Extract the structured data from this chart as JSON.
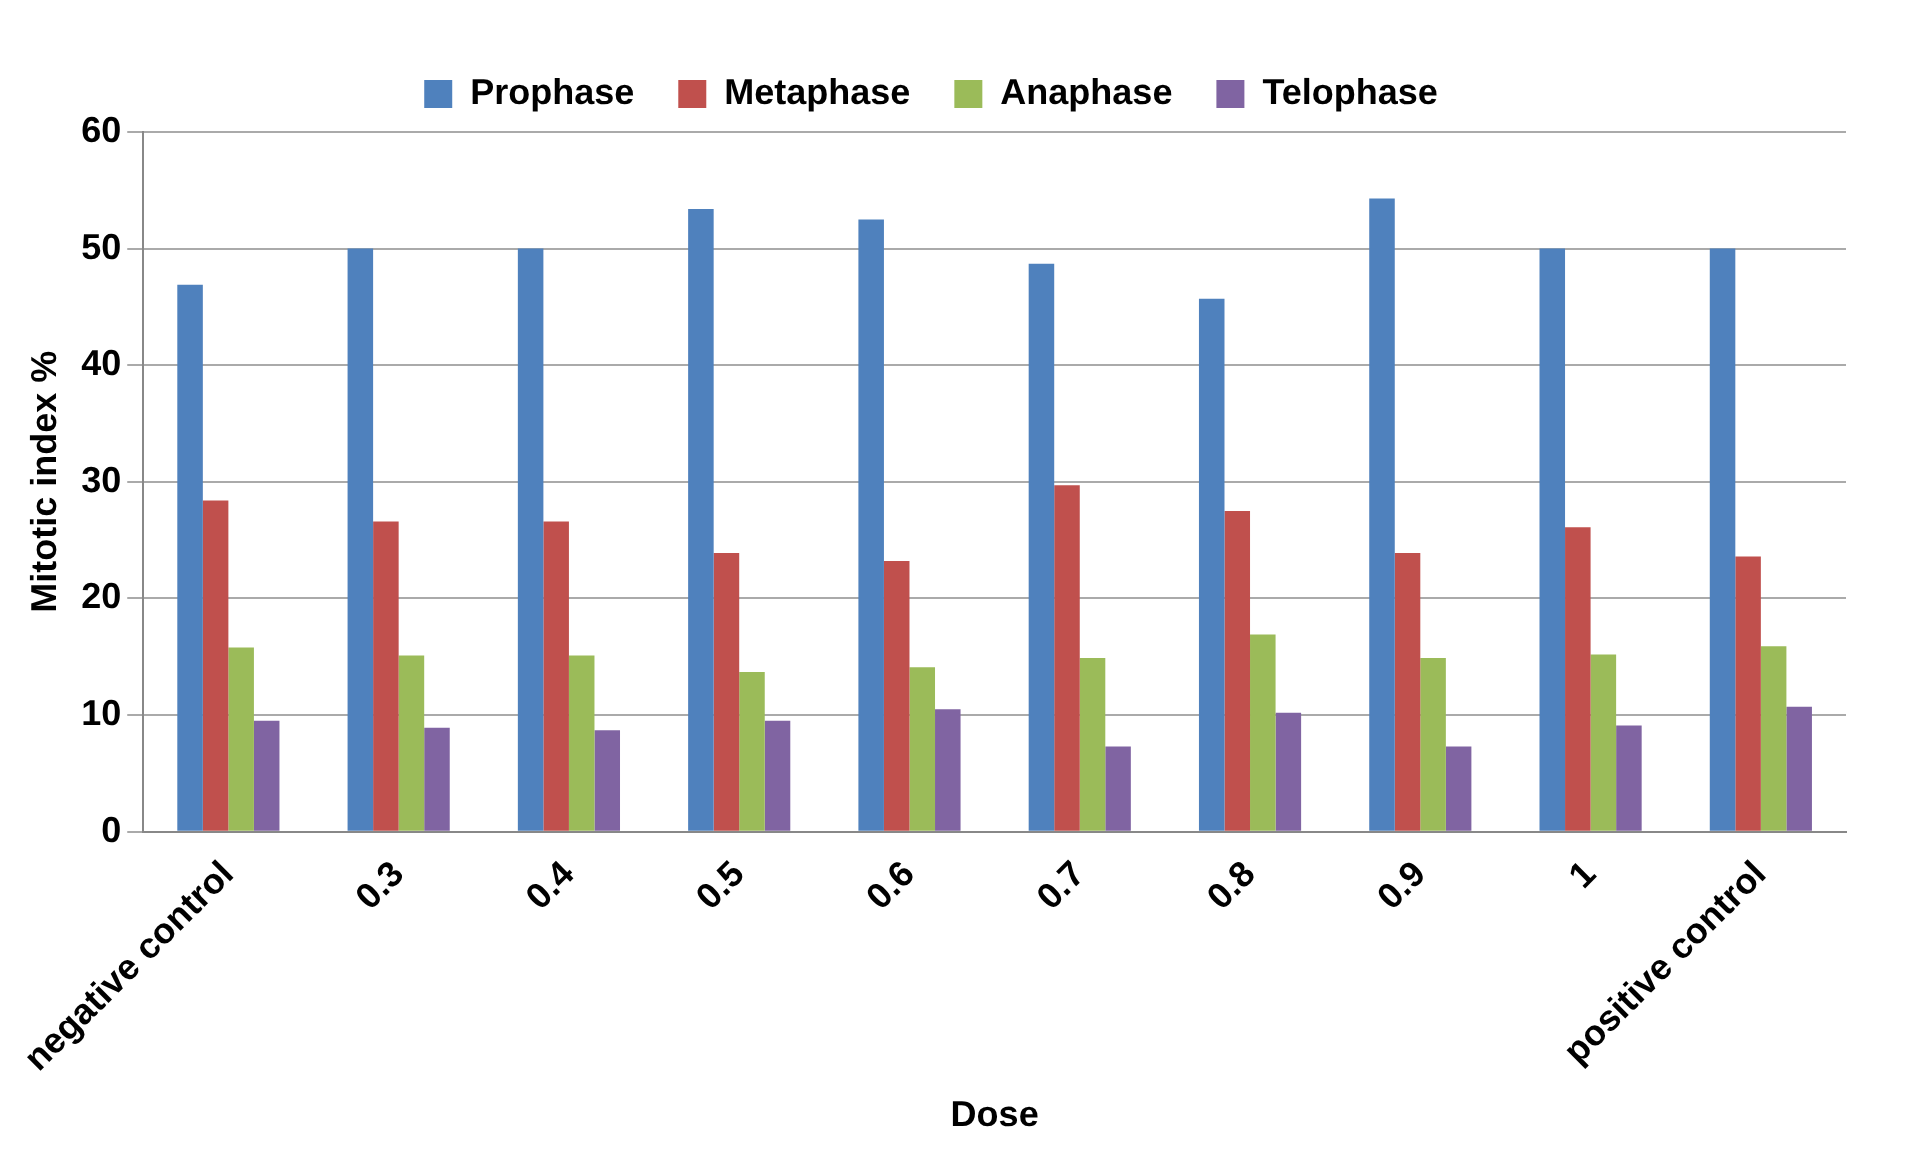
{
  "chart_data": {
    "type": "bar",
    "xlabel": "Dose",
    "ylabel": "Mitotic index %",
    "categories": [
      "negative control",
      "0.3",
      "0.4",
      "0.5",
      "0.6",
      "0.7",
      "0.8",
      "0.9",
      "1",
      "positive control"
    ],
    "series": [
      {
        "name": "Prophase",
        "color": "#4f81bd",
        "values": [
          46.9,
          50,
          50,
          53.4,
          52.5,
          48.7,
          45.7,
          54.3,
          50,
          50
        ]
      },
      {
        "name": "Metaphase",
        "color": "#c0504d",
        "values": [
          28.4,
          26.6,
          26.6,
          23.9,
          23.2,
          29.7,
          27.5,
          23.9,
          26.1,
          23.6
        ]
      },
      {
        "name": "Anaphase",
        "color": "#9bbb59",
        "values": [
          15.8,
          15.1,
          15.1,
          13.7,
          14.1,
          14.9,
          16.9,
          14.9,
          15.2,
          15.9
        ]
      },
      {
        "name": "Telophase",
        "color": "#8064a2",
        "values": [
          9.5,
          8.9,
          8.7,
          9.5,
          10.5,
          7.3,
          10.2,
          7.3,
          9.1,
          10.7
        ]
      }
    ],
    "ylim": [
      0,
      60
    ],
    "yticks": [
      0,
      10,
      20,
      30,
      40,
      50,
      60
    ],
    "grid": "y",
    "legend": "top"
  }
}
